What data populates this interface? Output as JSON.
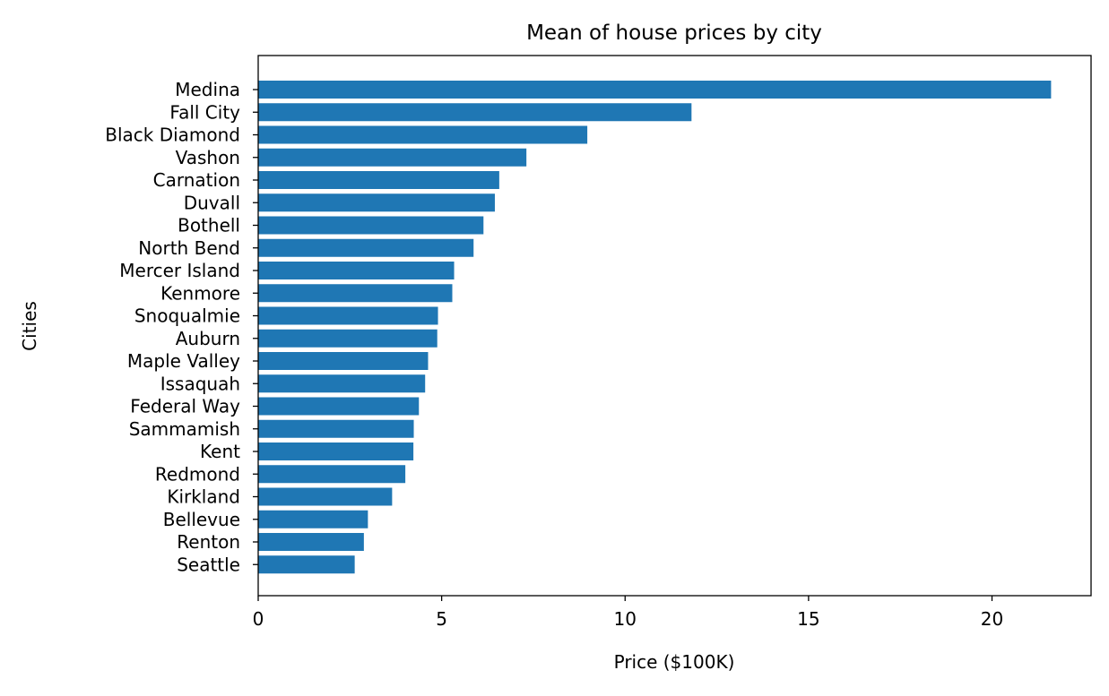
{
  "chart_data": {
    "type": "bar",
    "orientation": "horizontal",
    "title": "Mean of house prices by city",
    "xlabel": "Price ($100K)",
    "ylabel": "Cities",
    "xlim": [
      0,
      22.7
    ],
    "xticks": [
      0,
      5,
      10,
      15,
      20
    ],
    "grid": false,
    "bar_color": "#1f77b4",
    "categories": [
      "Medina",
      "Fall City",
      "Black Diamond",
      "Vashon",
      "Carnation",
      "Duvall",
      "Bothell",
      "North Bend",
      "Mercer Island",
      "Kenmore",
      "Snoqualmie",
      "Auburn",
      "Maple Valley",
      "Issaquah",
      "Federal Way",
      "Sammamish",
      "Kent",
      "Redmond",
      "Kirkland",
      "Bellevue",
      "Renton",
      "Seattle"
    ],
    "values": [
      21.61,
      11.81,
      8.97,
      7.31,
      6.57,
      6.45,
      6.14,
      5.87,
      5.34,
      5.29,
      4.9,
      4.88,
      4.63,
      4.55,
      4.38,
      4.24,
      4.23,
      4.01,
      3.65,
      2.99,
      2.88,
      2.63
    ]
  }
}
